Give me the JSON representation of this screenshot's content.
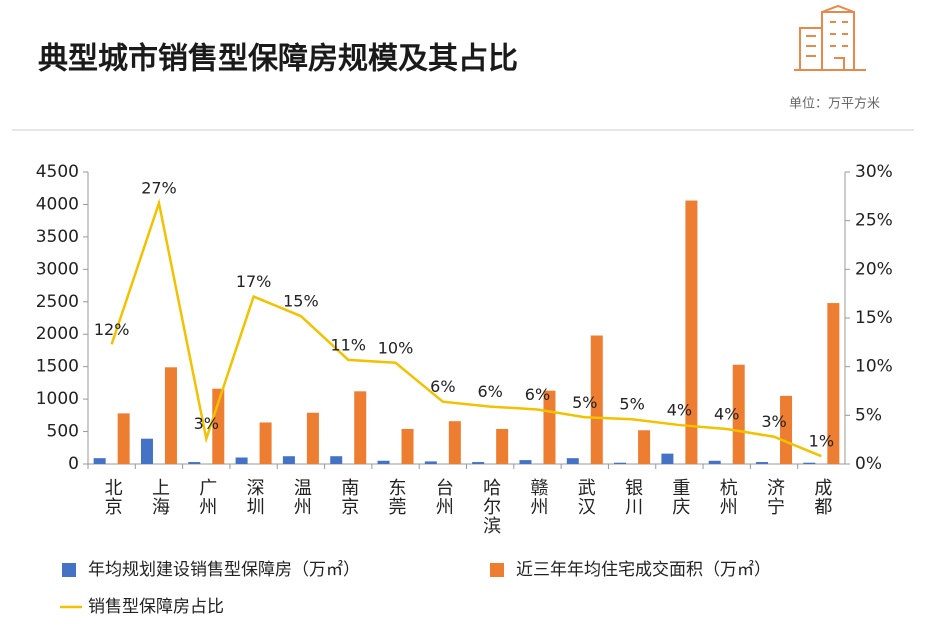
{
  "chart_data": {
    "type": "bar_line",
    "title": "典型城市销售型保障房规模及其占比",
    "unit_label": "单位：万平方米",
    "categories": [
      "北京",
      "上海",
      "广州",
      "深圳",
      "温州",
      "南京",
      "东莞",
      "台州",
      "哈尔滨",
      "赣州",
      "武汉",
      "银川",
      "重庆",
      "杭州",
      "济宁",
      "成都"
    ],
    "series": [
      {
        "name": "年均规划建设销售型保障房（万㎡）",
        "color": "#4472c4",
        "type": "bar",
        "values": [
          90,
          390,
          30,
          100,
          120,
          120,
          50,
          40,
          30,
          60,
          90,
          20,
          160,
          50,
          30,
          20
        ]
      },
      {
        "name": "近三年年均住宅成交面积（万㎡）",
        "color": "#ed7d31",
        "type": "bar",
        "values": [
          780,
          1490,
          1160,
          640,
          790,
          1120,
          540,
          660,
          540,
          1130,
          1980,
          520,
          4060,
          1530,
          1050,
          2480
        ]
      },
      {
        "name": "销售型保障房占比",
        "color": "#f2c200",
        "type": "line",
        "axis": "y2",
        "values": [
          12.3,
          26.8,
          2.6,
          17.2,
          15.2,
          10.7,
          10.4,
          6.4,
          5.9,
          5.6,
          4.8,
          4.6,
          4.0,
          3.6,
          2.8,
          0.8
        ],
        "value_labels": [
          "12%",
          "27%",
          "3%",
          "17%",
          "15%",
          "11%",
          "10%",
          "6%",
          "6%",
          "6%",
          "5%",
          "5%",
          "4%",
          "4%",
          "3%",
          "1%"
        ]
      }
    ],
    "ylim": [
      0,
      4500
    ],
    "yticks": [
      0,
      500,
      1000,
      1500,
      2000,
      2500,
      3000,
      3500,
      4000,
      4500
    ],
    "y2lim": [
      0,
      30
    ],
    "y2ticks": [
      {
        "value": 0,
        "label": "0%"
      },
      {
        "value": 5,
        "label": "5%"
      },
      {
        "value": 10,
        "label": "10%"
      },
      {
        "value": 15,
        "label": "15%"
      },
      {
        "value": 20,
        "label": "20%"
      },
      {
        "value": 25,
        "label": "25%"
      },
      {
        "value": 30,
        "label": "30%"
      }
    ],
    "legend": "bottom"
  }
}
